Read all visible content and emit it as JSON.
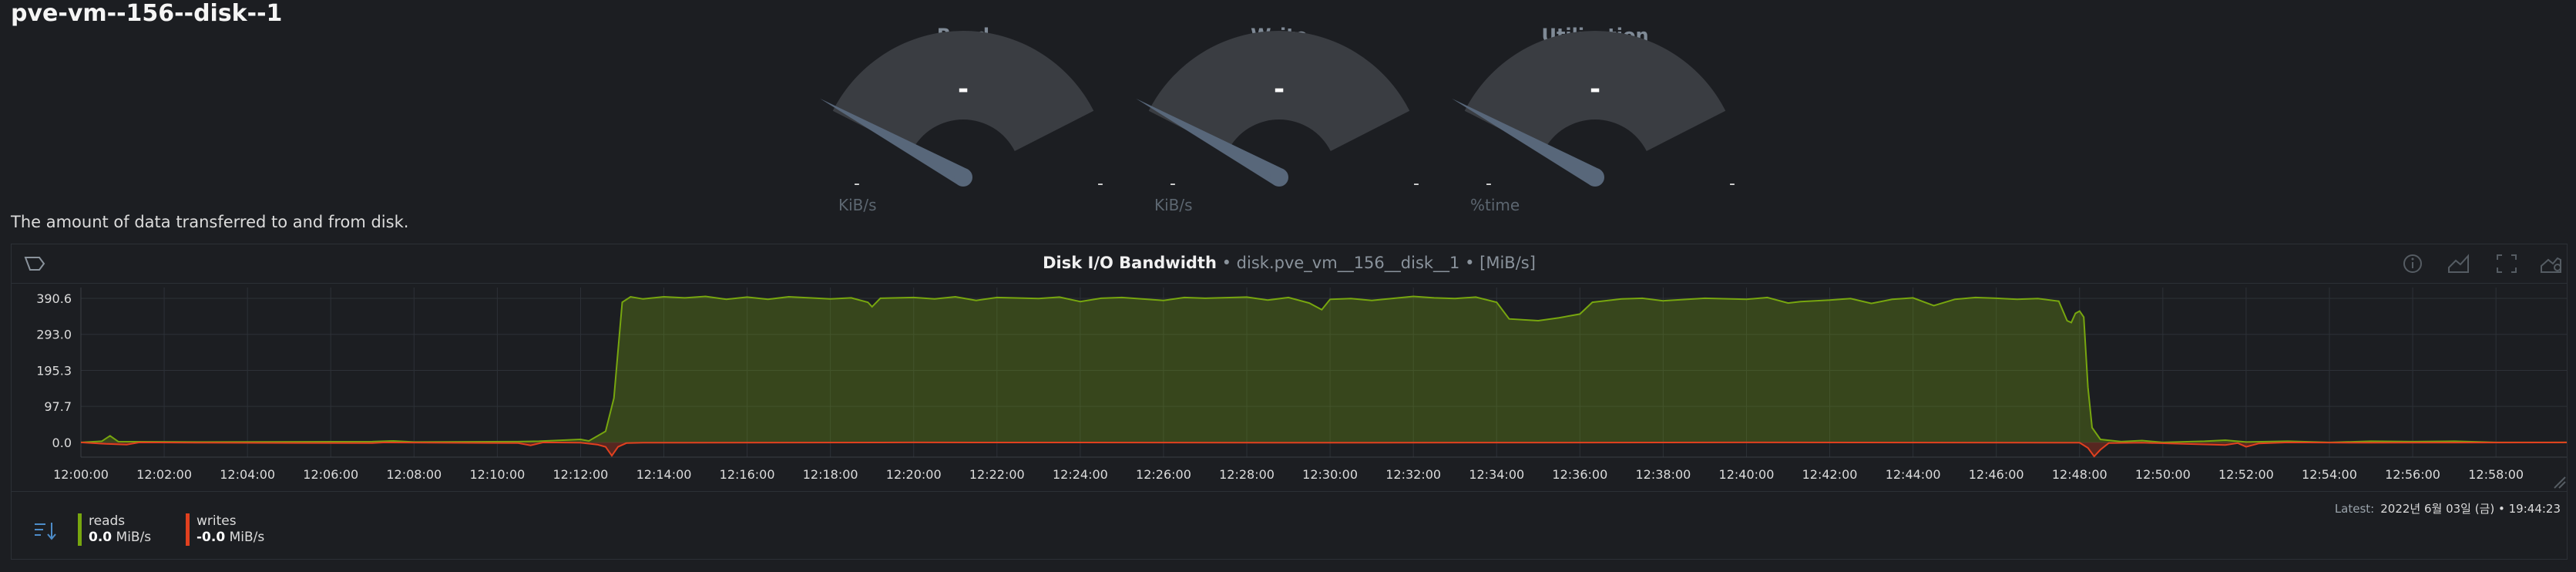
{
  "page": {
    "title": "pve-vm--156--disk--1"
  },
  "gauges": [
    {
      "title": "Read",
      "value": "-",
      "min": "-",
      "max": "-",
      "unit": "KiB/s"
    },
    {
      "title": "Write",
      "value": "-",
      "min": "-",
      "max": "-",
      "unit": "KiB/s"
    },
    {
      "title": "Utilization",
      "value": "-",
      "min": "-",
      "max": "-",
      "unit": "%time"
    }
  ],
  "description": "The amount of data transferred to and from disk.",
  "panel": {
    "title_main": "Disk I/O Bandwidth",
    "title_context": "• disk.pve_vm__156__disk__1 • [MiB/s]",
    "icons": [
      "chart-type-icon",
      "info-icon",
      "area-chart-icon",
      "fullscreen-icon",
      "settings-icon"
    ],
    "latest_label": "Latest:",
    "latest_time": "2022년 6월 03일 (금) • 19:44:23",
    "sort_icon": "sort-icon"
  },
  "legend": [
    {
      "name": "reads",
      "value": "0.0",
      "unit": "MiB/s",
      "color": "#77a60f"
    },
    {
      "name": "writes",
      "value": "-0.0",
      "unit": "MiB/s",
      "color": "#e1401f"
    }
  ],
  "chart_data": {
    "type": "area",
    "grid": true,
    "y_ticks": [
      "390.6",
      "293.0",
      "195.3",
      "97.7",
      "0.0"
    ],
    "x_ticks": [
      "12:00:00",
      "12:02:00",
      "12:04:00",
      "12:06:00",
      "12:08:00",
      "12:10:00",
      "12:12:00",
      "12:14:00",
      "12:16:00",
      "12:18:00",
      "12:20:00",
      "12:22:00",
      "12:24:00",
      "12:26:00",
      "12:28:00",
      "12:30:00",
      "12:32:00",
      "12:34:00",
      "12:36:00",
      "12:38:00",
      "12:40:00",
      "12:42:00",
      "12:44:00",
      "12:46:00",
      "12:48:00",
      "12:50:00",
      "12:52:00",
      "12:54:00",
      "12:56:00",
      "12:58:00"
    ],
    "x_range_minutes": [
      0,
      59.7
    ],
    "ylim": [
      -40,
      420
    ],
    "series": [
      {
        "name": "reads",
        "color": "#77a60f",
        "points": [
          [
            0,
            0
          ],
          [
            0.5,
            3
          ],
          [
            0.7,
            18
          ],
          [
            0.9,
            2
          ],
          [
            3,
            1
          ],
          [
            7,
            2
          ],
          [
            7.5,
            4
          ],
          [
            8,
            1
          ],
          [
            10.5,
            2
          ],
          [
            11,
            3
          ],
          [
            12,
            8
          ],
          [
            12.2,
            4
          ],
          [
            12.6,
            30
          ],
          [
            12.8,
            120
          ],
          [
            13,
            380
          ],
          [
            13.2,
            395
          ],
          [
            13.5,
            389
          ],
          [
            14,
            395
          ],
          [
            14.5,
            392
          ],
          [
            15,
            396
          ],
          [
            15.5,
            388
          ],
          [
            16,
            394
          ],
          [
            16.5,
            388
          ],
          [
            17,
            395
          ],
          [
            18,
            389
          ],
          [
            18.5,
            392
          ],
          [
            18.9,
            380
          ],
          [
            19,
            368
          ],
          [
            19.2,
            391
          ],
          [
            20,
            393
          ],
          [
            20.5,
            389
          ],
          [
            21,
            395
          ],
          [
            21.5,
            385
          ],
          [
            22,
            393
          ],
          [
            23,
            390
          ],
          [
            23.5,
            394
          ],
          [
            24,
            382
          ],
          [
            24.5,
            391
          ],
          [
            25,
            393
          ],
          [
            26,
            385
          ],
          [
            26.5,
            393
          ],
          [
            27,
            391
          ],
          [
            28,
            394
          ],
          [
            28.5,
            386
          ],
          [
            29,
            393
          ],
          [
            29.5,
            378
          ],
          [
            29.8,
            360
          ],
          [
            30,
            388
          ],
          [
            30.5,
            390
          ],
          [
            31,
            385
          ],
          [
            32,
            396
          ],
          [
            32.5,
            392
          ],
          [
            33,
            390
          ],
          [
            33.5,
            394
          ],
          [
            34,
            380
          ],
          [
            34.3,
            335
          ],
          [
            35,
            330
          ],
          [
            35.5,
            338
          ],
          [
            36,
            348
          ],
          [
            36.3,
            380
          ],
          [
            37,
            389
          ],
          [
            37.5,
            391
          ],
          [
            38,
            384
          ],
          [
            39,
            391
          ],
          [
            40,
            388
          ],
          [
            40.5,
            393
          ],
          [
            41,
            378
          ],
          [
            41.3,
            382
          ],
          [
            42,
            386
          ],
          [
            42.5,
            390
          ],
          [
            43,
            377
          ],
          [
            43.5,
            388
          ],
          [
            44,
            392
          ],
          [
            44.5,
            371
          ],
          [
            45,
            388
          ],
          [
            45.5,
            393
          ],
          [
            46,
            391
          ],
          [
            46.5,
            388
          ],
          [
            47,
            390
          ],
          [
            47.5,
            383
          ],
          [
            47.7,
            330
          ],
          [
            47.8,
            325
          ],
          [
            47.9,
            350
          ],
          [
            48,
            356
          ],
          [
            48.1,
            340
          ],
          [
            48.2,
            150
          ],
          [
            48.3,
            40
          ],
          [
            48.5,
            8
          ],
          [
            49,
            2
          ],
          [
            49.5,
            5
          ],
          [
            50,
            0
          ],
          [
            51,
            3
          ],
          [
            51.5,
            6
          ],
          [
            52,
            1
          ],
          [
            53,
            3
          ],
          [
            54,
            0
          ],
          [
            55,
            3
          ],
          [
            56,
            2
          ],
          [
            57,
            3
          ],
          [
            58,
            0
          ],
          [
            59.7,
            0
          ]
        ]
      },
      {
        "name": "writes",
        "color": "#e1401f",
        "points": [
          [
            0,
            0
          ],
          [
            0.6,
            -4
          ],
          [
            1.1,
            -6
          ],
          [
            1.4,
            0
          ],
          [
            3,
            -1
          ],
          [
            7,
            -2
          ],
          [
            7.3,
            0
          ],
          [
            10.5,
            -2
          ],
          [
            10.8,
            -8
          ],
          [
            11.1,
            0
          ],
          [
            12,
            -1
          ],
          [
            12.4,
            -6
          ],
          [
            12.6,
            -12
          ],
          [
            12.75,
            -36
          ],
          [
            12.9,
            -12
          ],
          [
            13.1,
            -2
          ],
          [
            13.5,
            -1
          ],
          [
            20,
            0
          ],
          [
            30,
            -1
          ],
          [
            40,
            0
          ],
          [
            48,
            -1
          ],
          [
            48.2,
            -15
          ],
          [
            48.35,
            -38
          ],
          [
            48.5,
            -20
          ],
          [
            48.7,
            -2
          ],
          [
            49.5,
            -1
          ],
          [
            51.5,
            -7
          ],
          [
            51.8,
            -2
          ],
          [
            52,
            -12
          ],
          [
            52.3,
            -3
          ],
          [
            53,
            0
          ],
          [
            55,
            -1
          ],
          [
            59.7,
            0
          ]
        ]
      }
    ]
  }
}
